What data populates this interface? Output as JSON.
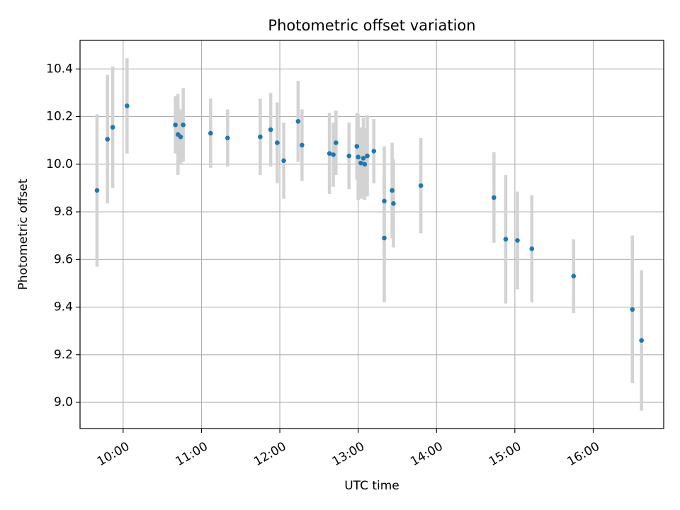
{
  "chart_data": {
    "type": "scatter",
    "title": "Photometric offset variation",
    "xlabel": "UTC time",
    "ylabel": "Photometric offset",
    "xlim": [
      "09:27",
      "16:54"
    ],
    "ylim": [
      8.89,
      10.52
    ],
    "x_ticks": [
      "10:00",
      "11:00",
      "12:00",
      "13:00",
      "14:00",
      "15:00",
      "16:00"
    ],
    "y_ticks": [
      9.0,
      9.2,
      9.4,
      9.6,
      9.8,
      10.0,
      10.2,
      10.4
    ],
    "grid": true,
    "colors": {
      "points": "#1f77b4",
      "error_bars": "#d3d3d3"
    },
    "series": [
      {
        "points": [
          {
            "x": "09:40",
            "y": 9.89,
            "yerr": 0.32
          },
          {
            "x": "09:48",
            "y": 10.105,
            "yerr": 0.27
          },
          {
            "x": "09:52",
            "y": 10.155,
            "yerr": 0.255
          },
          {
            "x": "10:03",
            "y": 10.245,
            "yerr": 0.2
          },
          {
            "x": "10:40",
            "y": 10.165,
            "yerr": 0.12
          },
          {
            "x": "10:42",
            "y": 10.125,
            "yerr": 0.17
          },
          {
            "x": "10:44",
            "y": 10.115,
            "yerr": 0.115
          },
          {
            "x": "10:46",
            "y": 10.165,
            "yerr": 0.155
          },
          {
            "x": "11:07",
            "y": 10.13,
            "yerr": 0.145
          },
          {
            "x": "11:20",
            "y": 10.11,
            "yerr": 0.12
          },
          {
            "x": "11:45",
            "y": 10.115,
            "yerr": 0.16
          },
          {
            "x": "11:53",
            "y": 10.145,
            "yerr": 0.155
          },
          {
            "x": "11:58",
            "y": 10.09,
            "yerr": 0.17
          },
          {
            "x": "12:03",
            "y": 10.015,
            "yerr": 0.16
          },
          {
            "x": "12:14",
            "y": 10.18,
            "yerr": 0.17
          },
          {
            "x": "12:17",
            "y": 10.08,
            "yerr": 0.15
          },
          {
            "x": "12:38",
            "y": 10.045,
            "yerr": 0.17
          },
          {
            "x": "12:41",
            "y": 10.04,
            "yerr": 0.135
          },
          {
            "x": "12:43",
            "y": 10.09,
            "yerr": 0.135
          },
          {
            "x": "12:53",
            "y": 10.035,
            "yerr": 0.14
          },
          {
            "x": "12:59",
            "y": 10.075,
            "yerr": 0.14
          },
          {
            "x": "13:00",
            "y": 10.03,
            "yerr": 0.18
          },
          {
            "x": "13:02",
            "y": 10.005,
            "yerr": 0.15
          },
          {
            "x": "13:04",
            "y": 10.025,
            "yerr": 0.17
          },
          {
            "x": "13:05",
            "y": 10.0,
            "yerr": 0.15
          },
          {
            "x": "13:07",
            "y": 10.035,
            "yerr": 0.17
          },
          {
            "x": "13:12",
            "y": 10.055,
            "yerr": 0.135
          },
          {
            "x": "13:20",
            "y": 9.845,
            "yerr": 0.23
          },
          {
            "x": "13:20",
            "y": 9.69,
            "yerr": 0.27
          },
          {
            "x": "13:26",
            "y": 9.89,
            "yerr": 0.2
          },
          {
            "x": "13:27",
            "y": 9.835,
            "yerr": 0.185
          },
          {
            "x": "13:48",
            "y": 9.91,
            "yerr": 0.2
          },
          {
            "x": "14:44",
            "y": 9.86,
            "yerr": 0.19
          },
          {
            "x": "14:53",
            "y": 9.685,
            "yerr": 0.27
          },
          {
            "x": "15:02",
            "y": 9.68,
            "yerr": 0.205
          },
          {
            "x": "15:13",
            "y": 9.645,
            "yerr": 0.225
          },
          {
            "x": "15:45",
            "y": 9.53,
            "yerr": 0.155
          },
          {
            "x": "16:30",
            "y": 9.39,
            "yerr": 0.31
          },
          {
            "x": "16:37",
            "y": 9.26,
            "yerr": 0.295
          }
        ]
      }
    ]
  }
}
